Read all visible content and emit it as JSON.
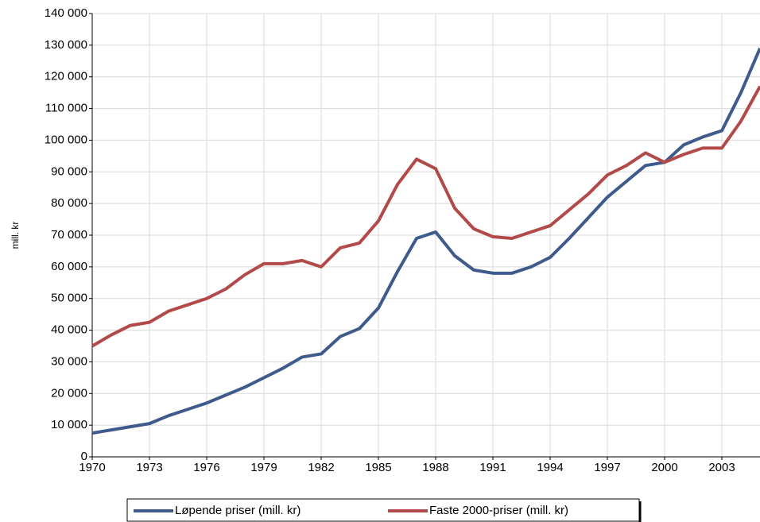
{
  "chart_data": {
    "type": "line",
    "y_label": "mill. kr",
    "x": [
      1970,
      1971,
      1972,
      1973,
      1974,
      1975,
      1976,
      1977,
      1978,
      1979,
      1980,
      1981,
      1982,
      1983,
      1984,
      1985,
      1986,
      1987,
      1988,
      1989,
      1990,
      1991,
      1992,
      1993,
      1994,
      1995,
      1996,
      1997,
      1998,
      1999,
      2000,
      2001,
      2002,
      2003,
      2004,
      2005
    ],
    "series": [
      {
        "name": "Løpende priser (mill. kr)",
        "color": "#3f5b8c",
        "values": [
          7500,
          8500,
          9500,
          10500,
          13000,
          15000,
          17000,
          19500,
          22000,
          25000,
          28000,
          31500,
          32500,
          38000,
          40500,
          47000,
          58500,
          69000,
          71000,
          63500,
          59000,
          58000,
          58000,
          60000,
          63000,
          69000,
          75500,
          82000,
          87000,
          92000,
          93000,
          98500,
          101000,
          103000,
          115000,
          129000
        ]
      },
      {
        "name": "Faste 2000-priser (mill. kr)",
        "color": "#b24a4a",
        "values": [
          35000,
          38500,
          41500,
          42500,
          46000,
          48000,
          50000,
          53000,
          57500,
          61000,
          61000,
          62000,
          60000,
          66000,
          67500,
          74500,
          86000,
          94000,
          91000,
          78500,
          72000,
          69500,
          69000,
          71000,
          73000,
          78000,
          83000,
          89000,
          92000,
          96000,
          93000,
          95500,
          97500,
          97500,
          106000,
          117000
        ]
      }
    ],
    "xlim": [
      1970,
      2005
    ],
    "xticks": [
      1970,
      1973,
      1976,
      1979,
      1982,
      1985,
      1988,
      1991,
      1994,
      1997,
      2000,
      2003
    ],
    "ylim": [
      0,
      140000
    ],
    "yticks": [
      0,
      {
        "value": 10000,
        "label": "10 000"
      },
      {
        "value": 20000,
        "label": "20 000"
      },
      {
        "value": 30000,
        "label": "30 000"
      },
      {
        "value": 40000,
        "label": "40 000"
      },
      {
        "value": 50000,
        "label": "50 000"
      },
      {
        "value": 60000,
        "label": "60 000"
      },
      {
        "value": 70000,
        "label": "70 000"
      },
      {
        "value": 80000,
        "label": "80 000"
      },
      {
        "value": 90000,
        "label": "90 000"
      },
      {
        "value": 100000,
        "label": "100 000"
      },
      {
        "value": 110000,
        "label": "110 000"
      },
      {
        "value": 120000,
        "label": "120 000"
      },
      {
        "value": 130000,
        "label": "130 000"
      },
      {
        "value": 140000,
        "label": "140 000"
      }
    ],
    "grid": true
  }
}
